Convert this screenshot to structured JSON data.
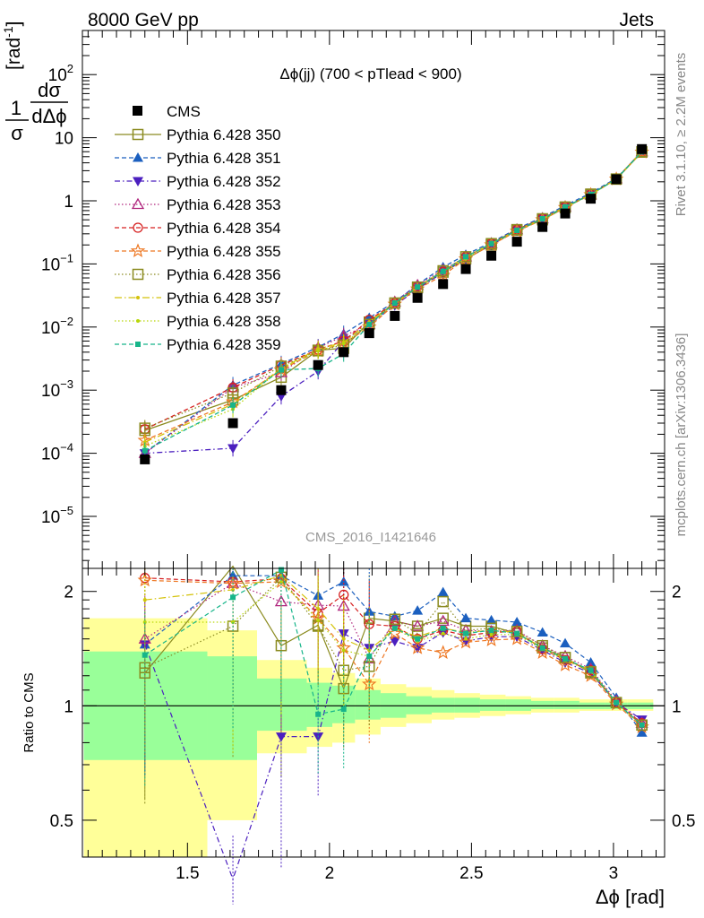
{
  "header": {
    "left": "8000 GeV pp",
    "right": "Jets"
  },
  "side_labels": {
    "top": "Rivet 3.1.10, ≥ 2.2M events",
    "bottom": "mcplots.cern.ch [arXiv:1306.3436]"
  },
  "plot_title": "Δϕ(jj) (700 < pTlead <  900)",
  "watermark": "CMS_2016_I1421646",
  "colors": {
    "yellow_band": "#ffff99",
    "green_band": "#99ff99"
  },
  "chart_data": [
    {
      "type": "scatter",
      "log_y": true,
      "ylabel": "1/σ dσ/dΔϕ [rad⁻¹]",
      "ylabel_unit": "[rad",
      "ylabel_unit_exp": "-1",
      "ylabel_unit_close": "]",
      "xlim": [
        1.13,
        3.18
      ],
      "ylim": [
        1.5e-06,
        500
      ],
      "y_ticks": [
        {
          "v": 1e-05,
          "base": "10",
          "exp": "−5"
        },
        {
          "v": 0.0001,
          "base": "10",
          "exp": "−4"
        },
        {
          "v": 0.001,
          "base": "10",
          "exp": "−3"
        },
        {
          "v": 0.01,
          "base": "10",
          "exp": "−2"
        },
        {
          "v": 0.1,
          "base": "10",
          "exp": "−1"
        },
        {
          "v": 1,
          "base": "1",
          "exp": ""
        },
        {
          "v": 10,
          "base": "10",
          "exp": ""
        },
        {
          "v": 100,
          "base": "10",
          "exp": "2"
        }
      ],
      "x": [
        1.35,
        1.66,
        1.83,
        1.96,
        2.05,
        2.14,
        2.23,
        2.31,
        2.4,
        2.48,
        2.57,
        2.66,
        2.75,
        2.83,
        2.92,
        3.01,
        3.1
      ],
      "cms": [
        8e-05,
        0.0003,
        0.001,
        0.0025,
        0.004,
        0.008,
        0.015,
        0.029,
        0.048,
        0.083,
        0.135,
        0.225,
        0.385,
        0.63,
        1.08,
        2.2,
        6.6
      ],
      "series": [
        {
          "name": "Pythia 6.428 350",
          "color": "#8b8b20",
          "marker": "square-open",
          "dash": "",
          "values": [
            0.00023,
            0.0007,
            0.0016,
            0.0043,
            0.0046,
            0.012,
            0.024,
            0.042,
            0.074,
            0.12,
            0.2,
            0.34,
            0.5,
            0.78,
            1.28,
            2.2,
            5.9
          ]
        },
        {
          "name": "Pythia 6.428 351",
          "color": "#1b5fbf",
          "marker": "triangle-up",
          "dash": "5,3",
          "values": [
            0.0001,
            0.0012,
            0.0026,
            0.0048,
            0.0078,
            0.014,
            0.025,
            0.047,
            0.089,
            0.14,
            0.22,
            0.36,
            0.55,
            0.84,
            1.33,
            2.27,
            5.9
          ]
        },
        {
          "name": "Pythia 6.428 352",
          "color": "#4b1fbf",
          "marker": "triangle-down",
          "dash": "6,3,1.5,3",
          "values": [
            0.0001,
            0.00012,
            0.0008,
            0.002,
            0.006,
            0.011,
            0.022,
            0.04,
            0.073,
            0.12,
            0.2,
            0.34,
            0.52,
            0.8,
            1.27,
            2.2,
            6.1
          ]
        },
        {
          "name": "Pythia 6.428 353",
          "color": "#b0267e",
          "marker": "triangle-open",
          "dash": "1.5,2.5",
          "values": [
            0.0001,
            0.0011,
            0.0019,
            0.0047,
            0.0072,
            0.011,
            0.025,
            0.046,
            0.08,
            0.13,
            0.21,
            0.35,
            0.52,
            0.8,
            1.25,
            2.25,
            6.0
          ]
        },
        {
          "name": "Pythia 6.428 354",
          "color": "#d62020",
          "marker": "circle-open",
          "dash": "5,3",
          "values": [
            0.00024,
            0.0011,
            0.0025,
            0.0044,
            0.006,
            0.013,
            0.024,
            0.044,
            0.075,
            0.13,
            0.21,
            0.35,
            0.53,
            0.8,
            1.27,
            2.22,
            6.1
          ]
        },
        {
          "name": "Pythia 6.428 355",
          "color": "#ee7722",
          "marker": "star-open",
          "dash": "5,3",
          "values": [
            0.00016,
            0.00065,
            0.0021,
            0.0042,
            0.0055,
            0.01,
            0.023,
            0.04,
            0.066,
            0.12,
            0.2,
            0.33,
            0.5,
            0.78,
            1.25,
            2.21,
            5.9
          ]
        },
        {
          "name": "Pythia 6.428 356",
          "color": "#8b8b20",
          "marker": "square-open",
          "dash": "1.5,2.5",
          "values": [
            0.00025,
            0.0009,
            0.0024,
            0.0042,
            0.0052,
            0.011,
            0.024,
            0.043,
            0.078,
            0.13,
            0.21,
            0.35,
            0.52,
            0.8,
            1.26,
            2.22,
            6.0
          ]
        },
        {
          "name": "Pythia 6.428 357",
          "color": "#d4c20a",
          "marker": "dot",
          "dash": "8,3,1.5,3",
          "values": [
            0.00015,
            0.0006,
            0.0022,
            0.0045,
            0.0057,
            0.012,
            0.024,
            0.043,
            0.076,
            0.13,
            0.21,
            0.34,
            0.52,
            0.8,
            1.26,
            2.22,
            6.0
          ]
        },
        {
          "name": "Pythia 6.428 358",
          "color": "#b8d60a",
          "marker": "dot",
          "dash": "1.5,2.5",
          "values": [
            0.00013,
            0.0005,
            0.0022,
            0.0042,
            0.0055,
            0.011,
            0.024,
            0.043,
            0.074,
            0.12,
            0.21,
            0.34,
            0.51,
            0.79,
            1.25,
            2.21,
            5.9
          ]
        },
        {
          "name": "Pythia 6.428 359",
          "color": "#17b58a",
          "marker": "square",
          "dash": "5,3",
          "values": [
            0.00011,
            0.00058,
            0.0021,
            0.0022,
            0.0038,
            0.011,
            0.024,
            0.043,
            0.076,
            0.13,
            0.21,
            0.34,
            0.52,
            0.8,
            1.26,
            2.22,
            6.0
          ]
        }
      ]
    },
    {
      "type": "scatter",
      "ylabel": "Ratio to CMS",
      "xlabel": "Δϕ [rad]",
      "xlim": [
        1.13,
        3.18
      ],
      "ylim": [
        0.4,
        2.3
      ],
      "x_ticks": [
        {
          "v": 1.5,
          "label": "1.5"
        },
        {
          "v": 2.0,
          "label": "2"
        },
        {
          "v": 2.5,
          "label": "2.5"
        },
        {
          "v": 3.0,
          "label": "3"
        }
      ],
      "y_ticks": [
        {
          "v": 0.5,
          "label": "0.5"
        },
        {
          "v": 1,
          "label": "1"
        },
        {
          "v": 2,
          "label": "2"
        }
      ],
      "bins": [
        [
          1.135,
          1.57
        ],
        [
          1.57,
          1.745
        ],
        [
          1.745,
          1.92
        ],
        [
          1.92,
          2.01
        ],
        [
          2.01,
          2.09
        ],
        [
          2.09,
          2.18
        ],
        [
          2.18,
          2.27
        ],
        [
          2.27,
          2.36
        ],
        [
          2.36,
          2.44
        ],
        [
          2.44,
          2.53
        ],
        [
          2.53,
          2.62
        ],
        [
          2.62,
          2.71
        ],
        [
          2.71,
          2.79
        ],
        [
          2.79,
          2.88
        ],
        [
          2.88,
          2.97
        ],
        [
          2.97,
          3.05
        ],
        [
          3.05,
          3.14
        ]
      ],
      "band_yellow": [
        [
          0.3,
          1.7
        ],
        [
          0.5,
          1.58
        ],
        [
          0.75,
          1.32
        ],
        [
          0.78,
          1.26
        ],
        [
          0.8,
          1.22
        ],
        [
          0.84,
          1.18
        ],
        [
          0.88,
          1.14
        ],
        [
          0.9,
          1.12
        ],
        [
          0.92,
          1.1
        ],
        [
          0.93,
          1.08
        ],
        [
          0.94,
          1.07
        ],
        [
          0.95,
          1.06
        ],
        [
          0.96,
          1.05
        ],
        [
          0.96,
          1.05
        ],
        [
          0.97,
          1.04
        ],
        [
          0.97,
          1.04
        ],
        [
          0.97,
          1.04
        ]
      ],
      "band_green": [
        [
          0.72,
          1.39
        ],
        [
          0.72,
          1.35
        ],
        [
          0.86,
          1.18
        ],
        [
          0.88,
          1.15
        ],
        [
          0.9,
          1.13
        ],
        [
          0.92,
          1.1
        ],
        [
          0.93,
          1.08
        ],
        [
          0.95,
          1.06
        ],
        [
          0.96,
          1.05
        ],
        [
          0.96,
          1.05
        ],
        [
          0.97,
          1.04
        ],
        [
          0.97,
          1.04
        ],
        [
          0.98,
          1.03
        ],
        [
          0.98,
          1.03
        ],
        [
          0.98,
          1.02
        ],
        [
          0.98,
          1.02
        ],
        [
          0.98,
          1.02
        ]
      ],
      "series": [
        {
          "name": "Pythia 6.428 350",
          "values": [
            1.22,
            2.33,
            1.44,
            1.63,
            1.11,
            1.7,
            1.67,
            1.62,
            1.7,
            1.62,
            1.62,
            1.55,
            1.42,
            1.34,
            1.22,
            1.02,
            0.89
          ]
        },
        {
          "name": "Pythia 6.428 351",
          "values": [
            1.45,
            2.2,
            2.2,
            1.95,
            2.12,
            1.77,
            1.72,
            1.78,
            1.99,
            1.7,
            1.68,
            1.66,
            1.56,
            1.46,
            1.3,
            1.05,
            0.85
          ]
        },
        {
          "name": "Pythia 6.428 352",
          "values": [
            1.45,
            0.35,
            0.83,
            0.83,
            1.55,
            1.42,
            1.48,
            1.42,
            1.56,
            1.48,
            1.52,
            1.52,
            1.4,
            1.3,
            1.22,
            1.02,
            0.92
          ]
        },
        {
          "name": "Pythia 6.428 353",
          "values": [
            1.5,
            2.1,
            1.88,
            1.84,
            1.83,
            1.33,
            1.67,
            1.62,
            1.67,
            1.58,
            1.57,
            1.58,
            1.44,
            1.35,
            1.25,
            1.03,
            0.9
          ]
        },
        {
          "name": "Pythia 6.428 354",
          "values": [
            2.17,
            2.12,
            2.16,
            1.75,
            1.96,
            1.64,
            1.62,
            1.5,
            1.58,
            1.53,
            1.56,
            1.57,
            1.41,
            1.32,
            1.24,
            1.02,
            0.9
          ]
        },
        {
          "name": "Pythia 6.428 355",
          "values": [
            2.14,
            2.1,
            2.12,
            1.7,
            1.42,
            1.14,
            1.55,
            1.42,
            1.38,
            1.47,
            1.49,
            1.5,
            1.38,
            1.28,
            1.2,
            1.01,
            0.88
          ]
        },
        {
          "name": "Pythia 6.428 356",
          "values": [
            1.26,
            1.62,
            2.18,
            1.62,
            1.24,
            1.27,
            1.69,
            1.55,
            1.88,
            1.58,
            1.6,
            1.57,
            1.44,
            1.34,
            1.23,
            1.02,
            0.89
          ]
        },
        {
          "name": "Pythia 6.428 357",
          "values": [
            1.9,
            2.02,
            2.2,
            1.8,
            1.5,
            1.4,
            1.6,
            1.52,
            1.6,
            1.56,
            1.58,
            1.56,
            1.42,
            1.33,
            1.24,
            1.02,
            0.89
          ]
        },
        {
          "name": "Pythia 6.428 358",
          "values": [
            1.66,
            1.66,
            2.12,
            1.68,
            1.4,
            1.35,
            1.6,
            1.48,
            1.55,
            1.5,
            1.54,
            1.54,
            1.41,
            1.32,
            1.23,
            1.02,
            0.89
          ]
        },
        {
          "name": "Pythia 6.428 359",
          "values": [
            1.36,
            1.93,
            2.28,
            0.95,
            0.98,
            1.35,
            1.6,
            1.5,
            1.6,
            1.55,
            1.58,
            1.55,
            1.42,
            1.33,
            1.24,
            1.02,
            0.89
          ]
        }
      ]
    }
  ]
}
